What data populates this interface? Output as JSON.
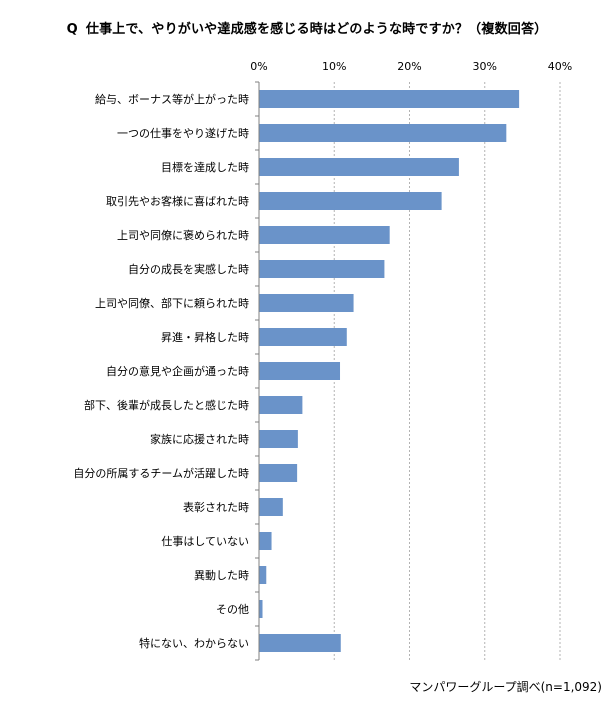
{
  "title_prefix": "Q",
  "title": "仕事上で、やりがいや達成感を感じる時はどのような時ですか？（複数回答）",
  "source_note": "マンパワーグループ調べ(n=1,092)",
  "colors": {
    "bar": "#6a93c9",
    "grid": "#b3b3b3",
    "axis": "#808080"
  },
  "chart_data": {
    "type": "bar",
    "orientation": "horizontal",
    "title": "仕事上で、やりがいや達成感を感じる時はどのような時ですか？（複数回答）",
    "xlabel": "",
    "ylabel": "",
    "xlim": [
      0,
      40
    ],
    "ticks": [
      "0%",
      "10%",
      "20%",
      "30%",
      "40%"
    ],
    "grid": true,
    "categories": [
      "給与、ボーナス等が上がった時",
      "一つの仕事をやり遂げた時",
      "目標を達成した時",
      "取引先やお客様に喜ばれた時",
      "上司や同僚に褒められた時",
      "自分の成長を実感した時",
      "上司や同僚、部下に頼られた時",
      "昇進・昇格した時",
      "自分の意見や企画が通った時",
      "部下、後輩が成長したと感じた時",
      "家族に応援された時",
      "自分の所属するチームが活躍した時",
      "表彰された時",
      "仕事はしていない",
      "異動した時",
      "その他",
      "特にない、わからない"
    ],
    "values": [
      34.5,
      32.8,
      26.5,
      24.2,
      17.3,
      16.6,
      12.5,
      11.6,
      10.7,
      5.7,
      5.1,
      5.0,
      3.1,
      1.6,
      0.9,
      0.4,
      10.8
    ]
  }
}
